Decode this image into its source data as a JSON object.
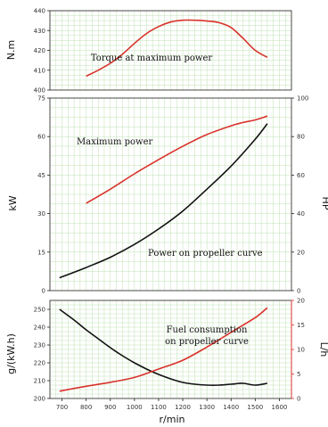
{
  "colors": {
    "red": "#d9322b",
    "black": "#111111",
    "grid": "#bfe0b3",
    "axis_red": "#d9322b"
  },
  "chart_data": [
    {
      "type": "line",
      "title": "",
      "ylabel": "N.m",
      "ylim": [
        400,
        440
      ],
      "yticks": [
        "400",
        "410",
        "420",
        "430",
        "440"
      ],
      "xlim": [
        650,
        1650
      ],
      "grid": true,
      "annotations": [
        {
          "text": "Torque at maximum power"
        }
      ],
      "series": [
        {
          "color": "red",
          "x": [
            800,
            850,
            900,
            950,
            1000,
            1050,
            1100,
            1150,
            1200,
            1250,
            1300,
            1350,
            1400,
            1450,
            1500,
            1550
          ],
          "y": [
            407,
            410,
            413.5,
            418,
            423.5,
            428.5,
            432,
            434.3,
            435.2,
            435.2,
            434.8,
            434,
            431.5,
            426,
            420,
            416.5
          ]
        }
      ]
    },
    {
      "type": "line",
      "title": "",
      "ylabel": "kW",
      "ylim": [
        0,
        75
      ],
      "yticks": [
        "0",
        "15",
        "30",
        "45",
        "60",
        "75"
      ],
      "y2label": "HP",
      "y2lim": [
        0,
        100
      ],
      "y2ticks": [
        "0",
        "20",
        "40",
        "60",
        "80",
        "100"
      ],
      "xlim": [
        650,
        1650
      ],
      "grid": true,
      "annotations": [
        {
          "text": "Maximum power"
        },
        {
          "text": "Power on propeller curve"
        }
      ],
      "series": [
        {
          "color": "red",
          "x": [
            800,
            900,
            1000,
            1100,
            1200,
            1300,
            1400,
            1450,
            1500,
            1550
          ],
          "y": [
            34,
            39.5,
            45.5,
            51,
            56.2,
            60.8,
            64.2,
            65.5,
            66.5,
            68
          ]
        },
        {
          "color": "black",
          "x": [
            690,
            800,
            900,
            1000,
            1100,
            1200,
            1300,
            1400,
            1500,
            1550
          ],
          "y": [
            5,
            9,
            13,
            18,
            24,
            31,
            39.5,
            48.5,
            59,
            65
          ]
        }
      ]
    },
    {
      "type": "line",
      "title": "",
      "xlabel": "r/min",
      "ylabel": "g/(kW.h)",
      "ylim": [
        200,
        255
      ],
      "yticks": [
        "200",
        "210",
        "220",
        "230",
        "240",
        "250"
      ],
      "y2label": "L/h",
      "y2lim": [
        0,
        20
      ],
      "y2ticks": [
        "0",
        "5",
        "10",
        "15",
        "20"
      ],
      "xlim": [
        650,
        1650
      ],
      "xticks": [
        "700",
        "800",
        "900",
        "1000",
        "1100",
        "1200",
        "1300",
        "1400",
        "1500",
        "1600"
      ],
      "grid": true,
      "annotations": [
        {
          "text": "Fuel consumption"
        },
        {
          "text": "on propeller curve"
        }
      ],
      "series": [
        {
          "color": "black",
          "axis": "left",
          "x": [
            690,
            750,
            800,
            850,
            900,
            950,
            1000,
            1050,
            1100,
            1150,
            1200,
            1250,
            1300,
            1350,
            1400,
            1450,
            1500,
            1550
          ],
          "y": [
            250,
            244,
            238.5,
            233.5,
            228.5,
            224,
            220,
            216.5,
            213.5,
            211,
            209,
            208,
            207.5,
            207.5,
            208,
            208.5,
            207.5,
            208.5
          ]
        },
        {
          "color": "red",
          "axis": "right",
          "x": [
            690,
            800,
            900,
            1000,
            1100,
            1200,
            1300,
            1400,
            1500,
            1550
          ],
          "y": [
            1.5,
            2.5,
            3.3,
            4.3,
            6,
            7.8,
            10.5,
            13.5,
            16.5,
            18.5
          ]
        }
      ]
    }
  ]
}
